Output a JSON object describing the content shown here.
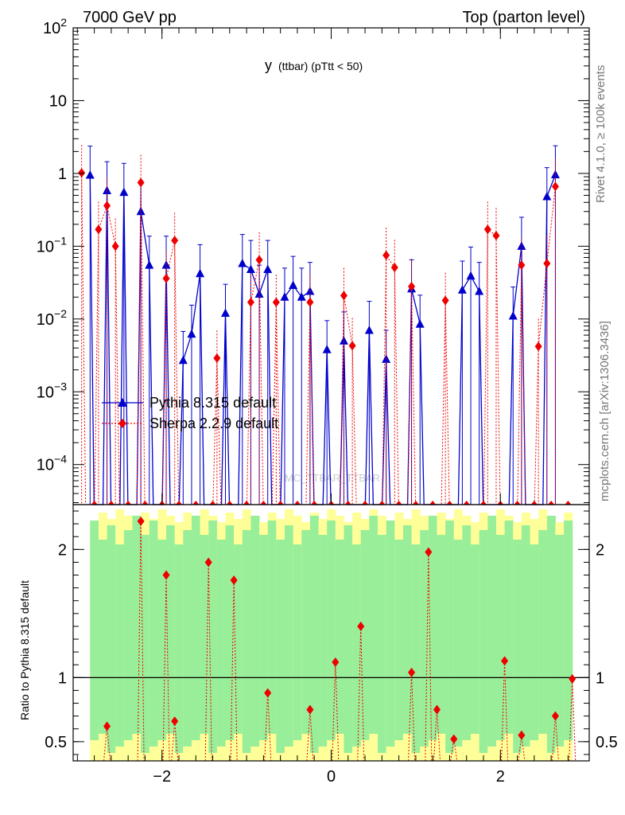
{
  "header": {
    "left": "7000 GeV pp",
    "right": "Top (parton level)"
  },
  "chart_title": {
    "main": "y",
    "sub": "(ttbar)  (pTtt < 50)"
  },
  "side_text": {
    "rivet": "Rivet 4.1.0, ≥ 100k events",
    "mcplots": "mcplots.cern.ch [arXiv:1306.3436]"
  },
  "watermark": "MC_TTBAR_TTBAR",
  "ratio_ylabel": "Ratio to Pythia 8.315 default",
  "legend": {
    "pythia": "Pythia 8.315 default",
    "sherpa": "Sherpa 2.2.9 default"
  },
  "colors": {
    "pythia": "#0000cc",
    "sherpa": "#ee0000",
    "band_inner": "#99ee99",
    "band_outer": "#ffff99"
  },
  "chart_data": {
    "type": "line",
    "xlim": [
      -3.05,
      3.05
    ],
    "main_ylim_log10": [
      -4.55,
      2.0
    ],
    "ratio_ylim": [
      0.35,
      2.35
    ],
    "main_yticks": [
      {
        "value": -4,
        "base": "10",
        "exp": "−4"
      },
      {
        "value": -3,
        "base": "10",
        "exp": "−3"
      },
      {
        "value": -2,
        "base": "10",
        "exp": "−2"
      },
      {
        "value": -1,
        "base": "10",
        "exp": "−1"
      },
      {
        "value": 0,
        "base": "1",
        "exp": ""
      },
      {
        "value": 1,
        "base": "10",
        "exp": ""
      },
      {
        "value": 2,
        "base": "10",
        "exp": "2"
      }
    ],
    "ratio_yticks": [
      {
        "value": 0.5,
        "label": "0.5"
      },
      {
        "value": 1,
        "label": "1"
      },
      {
        "value": 2,
        "label": "2"
      }
    ],
    "xticks": [
      {
        "value": -2,
        "label": "−2"
      },
      {
        "value": 0,
        "label": "0"
      },
      {
        "value": 2,
        "label": "2"
      }
    ],
    "pythia_points": [
      {
        "x": -2.85,
        "y": 0.95
      },
      {
        "x": -2.65,
        "y": 0.58
      },
      {
        "x": -2.45,
        "y": 0.55
      },
      {
        "x": -2.25,
        "y": 0.3
      },
      {
        "x": -2.15,
        "y": 0.055
      },
      {
        "x": -1.95,
        "y": 0.055
      },
      {
        "x": -1.75,
        "y": 0.0027
      },
      {
        "x": -1.65,
        "y": 0.0062
      },
      {
        "x": -1.55,
        "y": 0.042
      },
      {
        "x": -1.25,
        "y": 0.012
      },
      {
        "x": -1.05,
        "y": 0.058
      },
      {
        "x": -0.95,
        "y": 0.048
      },
      {
        "x": -0.85,
        "y": 0.022
      },
      {
        "x": -0.75,
        "y": 0.048
      },
      {
        "x": -0.55,
        "y": 0.02
      },
      {
        "x": -0.45,
        "y": 0.029
      },
      {
        "x": -0.35,
        "y": 0.02
      },
      {
        "x": -0.25,
        "y": 0.024
      },
      {
        "x": -0.05,
        "y": 0.0038
      },
      {
        "x": 0.15,
        "y": 0.005
      },
      {
        "x": 0.45,
        "y": 0.007
      },
      {
        "x": 0.65,
        "y": 0.0028
      },
      {
        "x": 0.95,
        "y": 0.026
      },
      {
        "x": 1.05,
        "y": 0.0085
      },
      {
        "x": 1.55,
        "y": 0.025
      },
      {
        "x": 1.65,
        "y": 0.039
      },
      {
        "x": 1.75,
        "y": 0.024
      },
      {
        "x": 2.15,
        "y": 0.011
      },
      {
        "x": 2.25,
        "y": 0.1
      },
      {
        "x": 2.55,
        "y": 0.48
      },
      {
        "x": 2.65,
        "y": 0.96
      }
    ],
    "sherpa_points": [
      {
        "x": -2.95,
        "y": 1.02
      },
      {
        "x": -2.75,
        "y": 0.17
      },
      {
        "x": -2.65,
        "y": 0.36
      },
      {
        "x": -2.55,
        "y": 0.1
      },
      {
        "x": -2.25,
        "y": 0.75
      },
      {
        "x": -1.95,
        "y": 0.036
      },
      {
        "x": -1.85,
        "y": 0.12
      },
      {
        "x": -1.35,
        "y": 0.0029
      },
      {
        "x": -0.95,
        "y": 0.017
      },
      {
        "x": -0.85,
        "y": 0.065
      },
      {
        "x": -0.65,
        "y": 0.017
      },
      {
        "x": -0.25,
        "y": 0.017
      },
      {
        "x": 0.15,
        "y": 0.021
      },
      {
        "x": 0.25,
        "y": 0.0043
      },
      {
        "x": 0.65,
        "y": 0.075
      },
      {
        "x": 0.75,
        "y": 0.051
      },
      {
        "x": 0.95,
        "y": 0.028
      },
      {
        "x": 1.35,
        "y": 0.018
      },
      {
        "x": 1.85,
        "y": 0.17
      },
      {
        "x": 1.95,
        "y": 0.14
      },
      {
        "x": 2.25,
        "y": 0.055
      },
      {
        "x": 2.45,
        "y": 0.0042
      },
      {
        "x": 2.55,
        "y": 0.058
      },
      {
        "x": 2.65,
        "y": 0.66
      }
    ],
    "sherpa_ratio": [
      {
        "x": -2.65,
        "y": 0.62
      },
      {
        "x": -2.25,
        "y": 2.22
      },
      {
        "x": -1.95,
        "y": 1.8
      },
      {
        "x": -1.85,
        "y": 0.66
      },
      {
        "x": -1.45,
        "y": 1.9
      },
      {
        "x": -1.15,
        "y": 1.76
      },
      {
        "x": -0.75,
        "y": 0.88
      },
      {
        "x": -0.25,
        "y": 0.75
      },
      {
        "x": 0.05,
        "y": 1.12
      },
      {
        "x": 0.35,
        "y": 1.4
      },
      {
        "x": 0.95,
        "y": 1.04
      },
      {
        "x": 1.15,
        "y": 1.98
      },
      {
        "x": 1.25,
        "y": 0.75
      },
      {
        "x": 1.45,
        "y": 0.52
      },
      {
        "x": 2.05,
        "y": 1.13
      },
      {
        "x": 2.25,
        "y": 0.55
      },
      {
        "x": 2.65,
        "y": 0.7
      },
      {
        "x": 2.85,
        "y": 0.99
      }
    ]
  }
}
